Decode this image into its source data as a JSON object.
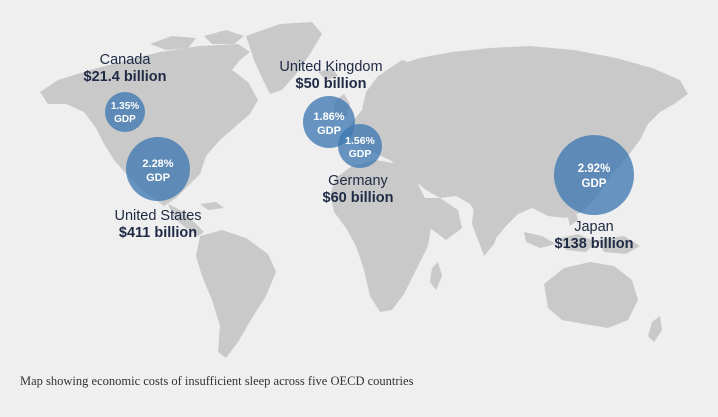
{
  "caption": "Map showing economic costs of insufficient sleep across five OECD countries",
  "colors": {
    "background": "#efefef",
    "land": "#c9c9c9",
    "bubble": "#3f78b2",
    "text": "#1f2a44"
  },
  "gdp_unit": "GDP",
  "countries": [
    {
      "id": "canada",
      "name": "Canada",
      "cost": "$21.4 billion",
      "gdp_loss": "1.35%"
    },
    {
      "id": "united-states",
      "name": "United States",
      "cost": "$411 billion",
      "gdp_loss": "2.28%"
    },
    {
      "id": "united-kingdom",
      "name": "United Kingdom",
      "cost": "$50 billion",
      "gdp_loss": "1.86%"
    },
    {
      "id": "germany",
      "name": "Germany",
      "cost": "$60 billion",
      "gdp_loss": "1.56%"
    },
    {
      "id": "japan",
      "name": "Japan",
      "cost": "$138 billion",
      "gdp_loss": "2.92%"
    }
  ]
}
